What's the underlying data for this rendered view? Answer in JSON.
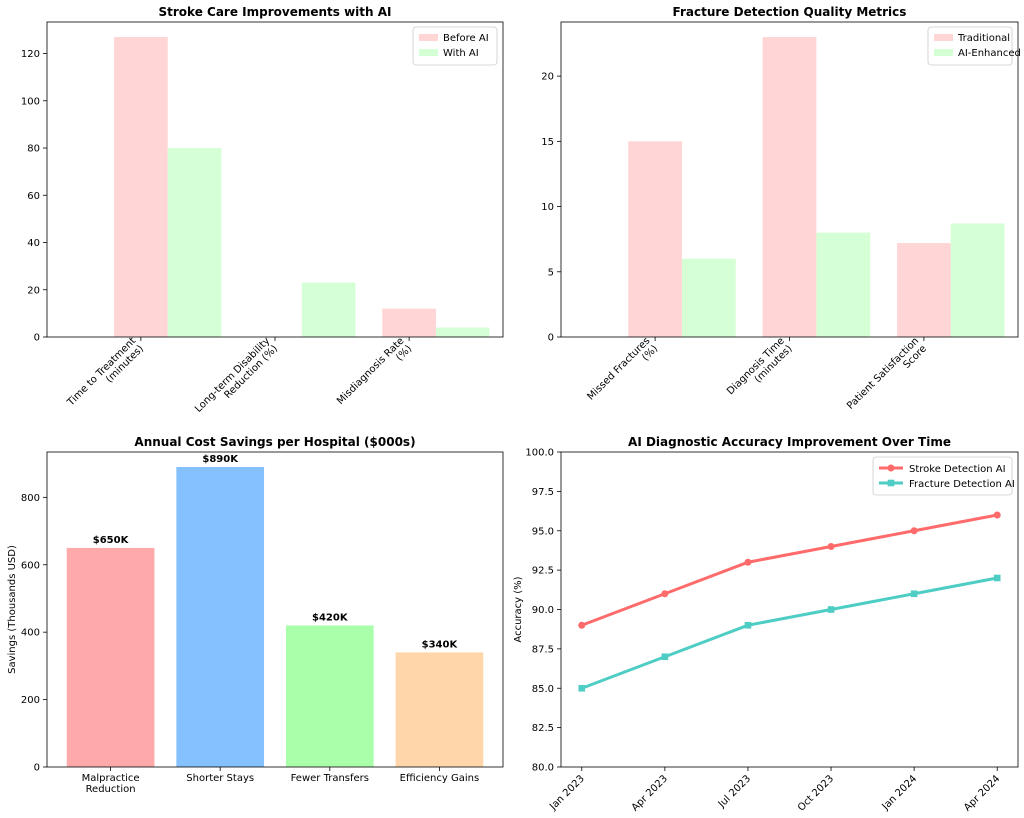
{
  "chart_data": [
    {
      "type": "bar",
      "title": "Stroke Care Improvements with AI",
      "categories": [
        "Time to Treatment\n(minutes)",
        "Long-term Disability\nReduction (%)",
        "Misdiagnosis Rate\n(%)"
      ],
      "series": [
        {
          "name": "Before AI",
          "color": "#ffd5d5",
          "values": [
            127,
            0,
            12
          ]
        },
        {
          "name": "With AI",
          "color": "#d5ffd5",
          "values": [
            80,
            23,
            4
          ]
        }
      ],
      "xlabel": "",
      "ylabel": "",
      "ylim": [
        0,
        133.35
      ],
      "yticks": [
        0,
        20,
        40,
        60,
        80,
        100,
        120
      ],
      "legend": "top-right",
      "rotate_xticks": true
    },
    {
      "type": "bar",
      "title": "Fracture Detection Quality Metrics",
      "categories": [
        "Missed Fractures\n(%)",
        "Diagnosis Time\n(minutes)",
        "Patient Satisfaction\nScore"
      ],
      "series": [
        {
          "name": "Traditional",
          "color": "#ffd5d5",
          "values": [
            15,
            23,
            7.2
          ]
        },
        {
          "name": "AI-Enhanced",
          "color": "#d5ffd5",
          "values": [
            6,
            8,
            8.7
          ]
        }
      ],
      "xlabel": "",
      "ylabel": "",
      "ylim": [
        0,
        24.15
      ],
      "yticks": [
        0,
        5,
        10,
        15,
        20
      ],
      "legend": "top-right",
      "rotate_xticks": true
    },
    {
      "type": "bar",
      "title": "Annual Cost Savings per Hospital ($000s)",
      "categories": [
        "Malpractice\nReduction",
        "Shorter Stays",
        "Fewer Transfers",
        "Efficiency Gains"
      ],
      "values": [
        650,
        890,
        420,
        340
      ],
      "colors": [
        "#ffaaaa",
        "#85c1ff",
        "#aaffaa",
        "#ffd5aa"
      ],
      "data_labels": [
        "$650K",
        "$890K",
        "$420K",
        "$340K"
      ],
      "xlabel": "",
      "ylabel": "Savings (Thousands USD)",
      "ylim": [
        0,
        934.5
      ],
      "yticks": [
        0,
        200,
        400,
        600,
        800
      ]
    },
    {
      "type": "line",
      "title": "AI Diagnostic Accuracy Improvement Over Time",
      "categories": [
        "Jan 2023",
        "Apr 2023",
        "Jul 2023",
        "Oct 2023",
        "Jan 2024",
        "Apr 2024"
      ],
      "series": [
        {
          "name": "Stroke Detection AI",
          "color": "#ff6b6b",
          "marker": "circle",
          "values": [
            89,
            91,
            93,
            94,
            95,
            96
          ]
        },
        {
          "name": "Fracture Detection AI",
          "color": "#4ecdc4",
          "marker": "square",
          "values": [
            85,
            87,
            89,
            90,
            91,
            92
          ]
        }
      ],
      "xlabel": "",
      "ylabel": "Accuracy (%)",
      "ylim": [
        80,
        100
      ],
      "yticks": [
        80.0,
        82.5,
        85.0,
        87.5,
        90.0,
        92.5,
        95.0,
        97.5,
        100.0
      ],
      "legend": "top-right",
      "rotate_xticks": true
    }
  ]
}
